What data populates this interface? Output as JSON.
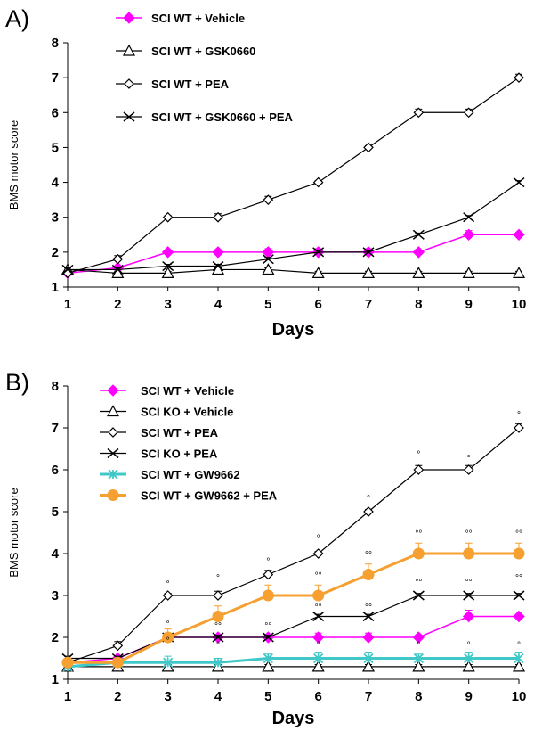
{
  "chart_data": [
    {
      "panel_label": "A)",
      "type": "line",
      "xlabel": "Days",
      "ylabel": "BMS motor score",
      "x": [
        1,
        2,
        3,
        4,
        5,
        6,
        7,
        8,
        9,
        10
      ],
      "xlim": [
        1,
        10
      ],
      "ylim": [
        1,
        8
      ],
      "yticks": [
        1,
        2,
        3,
        4,
        5,
        6,
        7,
        8
      ],
      "legend_position": "top-left",
      "series": [
        {
          "name": "SCI WT + Vehicle",
          "marker": "diamond-filled",
          "color": "#ff00ff",
          "values": [
            1.4,
            1.55,
            2.0,
            2.0,
            2.0,
            2.0,
            2.0,
            2.0,
            2.5,
            2.5
          ],
          "errors": [
            0.05,
            0.05,
            0.05,
            0.05,
            0.1,
            0.1,
            0.1,
            0.05,
            0.12,
            0.05
          ]
        },
        {
          "name": "SCI WT + GSK0660",
          "marker": "triangle-open",
          "color": "#000000",
          "values": [
            1.5,
            1.4,
            1.4,
            1.5,
            1.5,
            1.4,
            1.4,
            1.4,
            1.4,
            1.4
          ],
          "errors": [
            0.05,
            0.05,
            0.05,
            0.05,
            0.05,
            0.05,
            0.05,
            0.05,
            0.05,
            0.05
          ]
        },
        {
          "name": "SCI WT + PEA",
          "marker": "diamond-open",
          "color": "#000000",
          "values": [
            1.4,
            1.8,
            3.0,
            3.0,
            3.5,
            4.0,
            5.0,
            6.0,
            6.0,
            7.0
          ],
          "errors": [
            0.05,
            0.1,
            0.05,
            0.1,
            0.1,
            0.05,
            0.05,
            0.1,
            0.1,
            0.1
          ]
        },
        {
          "name": "SCI WT + GSK0660 + PEA",
          "marker": "x",
          "color": "#000000",
          "values": [
            1.5,
            1.5,
            1.6,
            1.6,
            1.8,
            2.0,
            2.0,
            2.5,
            3.0,
            4.0
          ],
          "errors": [
            0.05,
            0.05,
            0.05,
            0.05,
            0.05,
            0.05,
            0.05,
            0.05,
            0.05,
            0.05
          ]
        }
      ],
      "annotations": []
    },
    {
      "panel_label": "B)",
      "type": "line",
      "xlabel": "Days",
      "ylabel": "BMS motor score",
      "x": [
        1,
        2,
        3,
        4,
        5,
        6,
        7,
        8,
        9,
        10
      ],
      "xlim": [
        1,
        10
      ],
      "ylim": [
        1,
        8
      ],
      "yticks": [
        1,
        2,
        3,
        4,
        5,
        6,
        7,
        8
      ],
      "legend_position": "top-left",
      "series": [
        {
          "name": "SCI WT + Vehicle",
          "marker": "diamond-filled",
          "color": "#ff00ff",
          "values": [
            1.4,
            1.5,
            2.0,
            2.0,
            2.0,
            2.0,
            2.0,
            2.0,
            2.5,
            2.5
          ],
          "errors": [
            0.05,
            0.05,
            0.05,
            0.05,
            0.05,
            0.1,
            0.1,
            0.05,
            0.15,
            0.05
          ]
        },
        {
          "name": "SCI KO + Vehicle",
          "marker": "triangle-open",
          "color": "#000000",
          "values": [
            1.3,
            1.3,
            1.3,
            1.3,
            1.3,
            1.3,
            1.3,
            1.3,
            1.3,
            1.3
          ],
          "errors": [
            0.05,
            0.05,
            0.05,
            0.05,
            0.05,
            0.05,
            0.05,
            0.05,
            0.05,
            0.05
          ]
        },
        {
          "name": "SCI WT + PEA",
          "marker": "diamond-open",
          "color": "#000000",
          "values": [
            1.4,
            1.8,
            3.0,
            3.0,
            3.5,
            4.0,
            5.0,
            6.0,
            6.0,
            7.0
          ],
          "errors": [
            0.05,
            0.1,
            0.05,
            0.1,
            0.1,
            0.05,
            0.05,
            0.1,
            0.1,
            0.1
          ]
        },
        {
          "name": "SCI KO + PEA",
          "marker": "x",
          "color": "#000000",
          "values": [
            1.5,
            1.5,
            2.0,
            2.0,
            2.0,
            2.5,
            2.5,
            3.0,
            3.0,
            3.0
          ],
          "errors": [
            0.05,
            0.05,
            0.05,
            0.05,
            0.05,
            0.05,
            0.05,
            0.05,
            0.05,
            0.05
          ]
        },
        {
          "name": "SCI WT + GW9662",
          "marker": "asterisk",
          "color": "#40c8c8",
          "values": [
            1.3,
            1.4,
            1.4,
            1.4,
            1.5,
            1.5,
            1.5,
            1.5,
            1.5,
            1.5
          ],
          "errors": [
            0.05,
            0.1,
            0.15,
            0.1,
            0.1,
            0.15,
            0.15,
            0.1,
            0.15,
            0.15
          ]
        },
        {
          "name": "SCI WT + GW9662 + PEA",
          "marker": "circle-filled",
          "color": "#f5a030",
          "values": [
            1.4,
            1.4,
            2.0,
            2.5,
            3.0,
            3.0,
            3.5,
            4.0,
            4.0,
            4.0
          ],
          "errors": [
            0.05,
            0.05,
            0.2,
            0.25,
            0.25,
            0.25,
            0.25,
            0.25,
            0.25,
            0.25
          ]
        }
      ],
      "annotations": [
        {
          "x": 3,
          "y": 3.2,
          "text": "°"
        },
        {
          "x": 4,
          "y": 3.35,
          "text": "°"
        },
        {
          "x": 5,
          "y": 3.75,
          "text": "°"
        },
        {
          "x": 6,
          "y": 4.3,
          "text": "°"
        },
        {
          "x": 7,
          "y": 5.25,
          "text": "°"
        },
        {
          "x": 8,
          "y": 6.3,
          "text": "°"
        },
        {
          "x": 9,
          "y": 6.2,
          "text": "°"
        },
        {
          "x": 10,
          "y": 7.25,
          "text": "°"
        },
        {
          "x": 3,
          "y": 2.25,
          "text": "°"
        },
        {
          "x": 3,
          "y": 1.85,
          "text": "°"
        },
        {
          "x": 4,
          "y": 2.2,
          "text": "°°"
        },
        {
          "x": 4,
          "y": 1.75,
          "text": "°"
        },
        {
          "x": 5,
          "y": 2.2,
          "text": "°°"
        },
        {
          "x": 6,
          "y": 2.65,
          "text": "°°"
        },
        {
          "x": 6,
          "y": 3.4,
          "text": "°°"
        },
        {
          "x": 6,
          "y": 1.75,
          "text": "°"
        },
        {
          "x": 7,
          "y": 2.65,
          "text": "°°"
        },
        {
          "x": 7,
          "y": 3.9,
          "text": "°°"
        },
        {
          "x": 8,
          "y": 3.25,
          "text": "°°"
        },
        {
          "x": 8,
          "y": 4.4,
          "text": "°°"
        },
        {
          "x": 8,
          "y": 1.75,
          "text": "°"
        },
        {
          "x": 9,
          "y": 3.25,
          "text": "°°"
        },
        {
          "x": 9,
          "y": 4.4,
          "text": "°°"
        },
        {
          "x": 9,
          "y": 1.75,
          "text": "°"
        },
        {
          "x": 10,
          "y": 3.35,
          "text": "°°"
        },
        {
          "x": 10,
          "y": 4.4,
          "text": "°°"
        },
        {
          "x": 10,
          "y": 1.75,
          "text": "°"
        }
      ]
    }
  ]
}
